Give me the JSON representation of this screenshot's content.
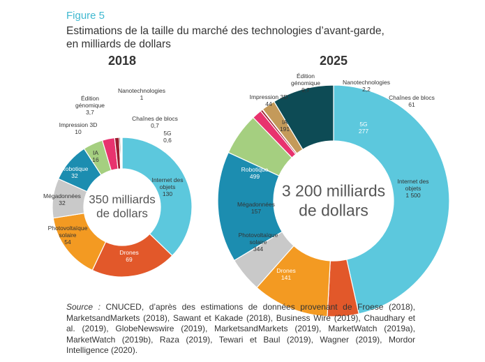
{
  "figure_label": "Figure 5",
  "title": [
    "Estimations de la taille du marché des technologies d’avant-garde,",
    "en milliards de dollars"
  ],
  "chart_data": [
    {
      "type": "pie",
      "title": "2018",
      "center_label": [
        "350 milliards",
        "de dollars"
      ],
      "categories": [
        "Internet des objets",
        "Drones",
        "Photovoltaïque solaire",
        "Mégadonnées",
        "Robotique",
        "IA",
        "Impression 3D",
        "Édition génomique",
        "Nanotechnologies",
        "Chaînes de blocs",
        "5G"
      ],
      "values": [
        130,
        69,
        54,
        32,
        32,
        16,
        10,
        3.7,
        1,
        0.7,
        0.6
      ],
      "value_labels": [
        "130",
        "69",
        "54",
        "32",
        "32",
        "16",
        "10",
        "3,7",
        "1",
        "0,7",
        "0,6"
      ],
      "colors": [
        "#5cc8dd",
        "#e2582a",
        "#f39a22",
        "#c9c9c9",
        "#1c8db0",
        "#a5cf80",
        "#e8336e",
        "#9b1c2e",
        "#3a2a22",
        "#c49a5a",
        "#0d4b55"
      ]
    },
    {
      "type": "pie",
      "title": "2025",
      "center_label": [
        "3 200 milliards",
        "de dollars"
      ],
      "categories": [
        "Internet des objets",
        "Drones",
        "Photovoltaïque solaire",
        "Mégadonnées",
        "Robotique",
        "IA",
        "Impression 3D",
        "Édition génomique",
        "Nanotechnologies",
        "Chaînes de blocs",
        "5G"
      ],
      "values": [
        1500,
        141,
        344,
        157,
        499,
        191,
        44,
        9.7,
        2.2,
        61,
        277
      ],
      "value_labels": [
        "1 500",
        "141",
        "344",
        "157",
        "499",
        "191",
        "44",
        "9,7",
        "2,2",
        "61",
        "277"
      ],
      "colors": [
        "#5cc8dd",
        "#e2582a",
        "#f39a22",
        "#c9c9c9",
        "#1c8db0",
        "#a5cf80",
        "#e8336e",
        "#9b1c2e",
        "#3a2a22",
        "#c49a5a",
        "#0d4b55"
      ]
    }
  ],
  "source_label": "Source :",
  "source": "CNUCED, d’après des estimations de données provenant de Froese (2018), MarketsandMarkets (2018), Sawant et Kakade (2018), Business Wire (2019), Chaudhary et al. (2019), GlobeNewswire (2019), MarketsandMarkets (2019), MarketWatch (2019a), MarketWatch (2019b), Raza (2019), Tewari et Baul (2019), Wagner (2019), Mordor Intelligence (2020)."
}
